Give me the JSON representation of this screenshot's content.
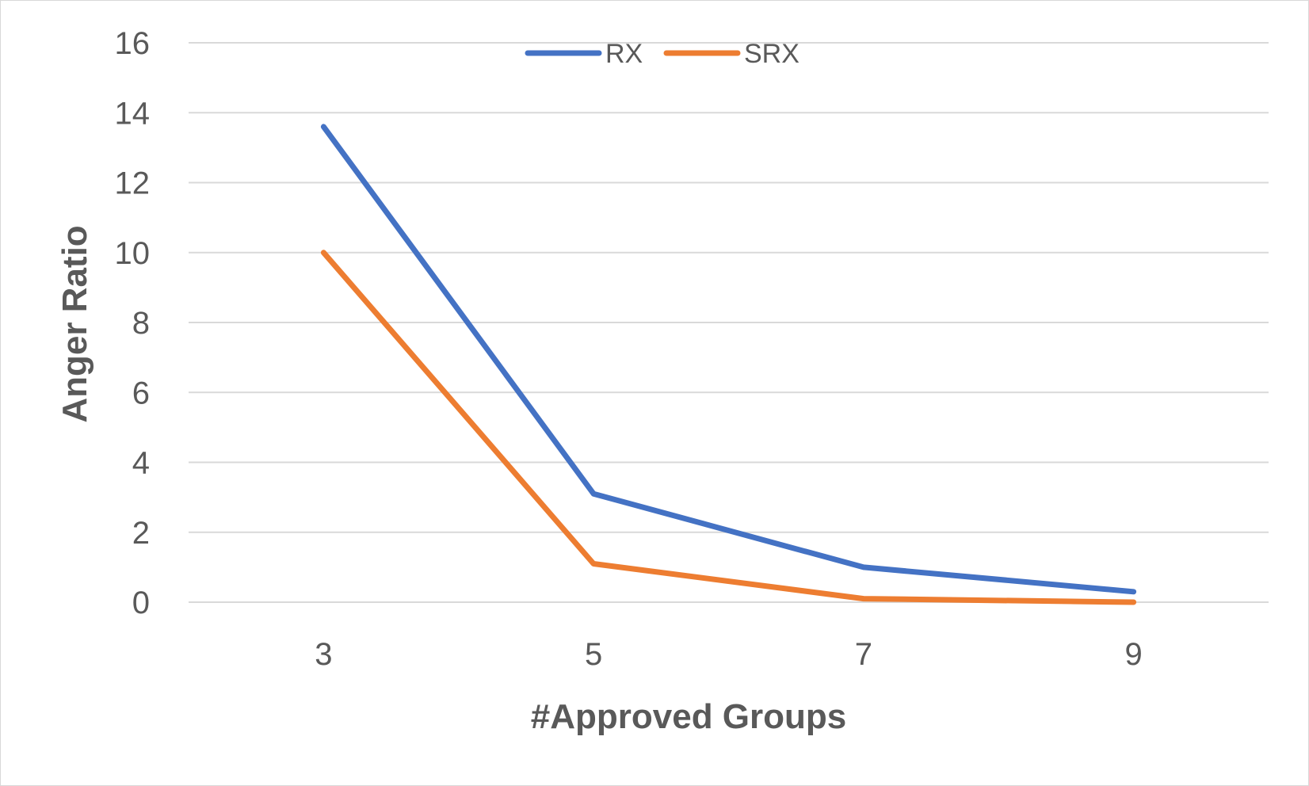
{
  "chart_data": {
    "type": "line",
    "xlabel": "#Approved Groups",
    "ylabel": "Anger Ratio",
    "categories": [
      "3",
      "5",
      "7",
      "9"
    ],
    "yticks": [
      "0",
      "2",
      "4",
      "6",
      "8",
      "10",
      "12",
      "14",
      "16"
    ],
    "ylim": [
      0,
      16
    ],
    "grid": true,
    "legend_position": "top-center",
    "series": [
      {
        "name": "RX",
        "color": "#4472c4",
        "values": [
          13.6,
          3.1,
          1.0,
          0.3
        ]
      },
      {
        "name": "SRX",
        "color": "#ed7d31",
        "values": [
          10.0,
          1.1,
          0.1,
          0.0
        ]
      }
    ]
  }
}
